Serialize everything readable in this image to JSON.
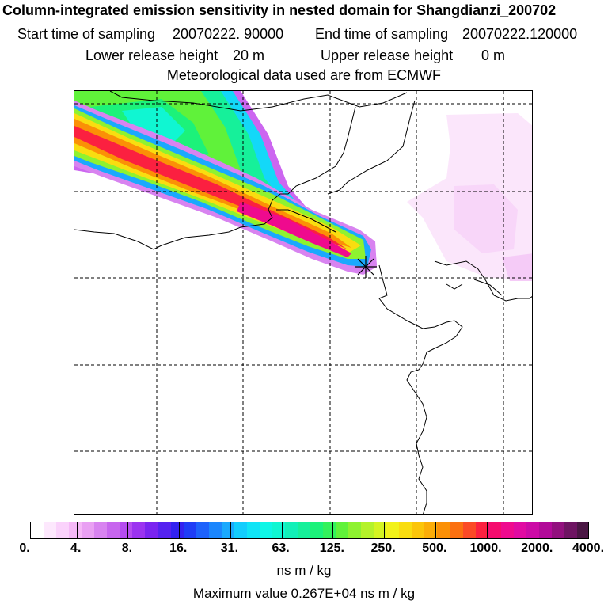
{
  "title": {
    "line1": "Column-integrated emission sensitivity in nested domain for Shangdianzi_200702",
    "start_label": "Start time of sampling",
    "start_value": "20070222. 90000",
    "end_label": "End time of sampling",
    "end_value": "20070222.120000",
    "lower_label": "Lower release height",
    "lower_value": "20 m",
    "upper_label": "Upper release height",
    "upper_value": "0 m",
    "line4": "Meteorological data used are from ECMWF"
  },
  "colorbar": {
    "ticks": [
      "0.",
      "4.",
      "8.",
      "16.",
      "31.",
      "63.",
      "125.",
      "250.",
      "500.",
      "1000.",
      "2000.",
      "4000."
    ],
    "colors": [
      "#ffffff",
      "#fde8fd",
      "#fad2fb",
      "#f5b8f7",
      "#e9a0f3",
      "#d883f0",
      "#c766ee",
      "#b54cf0",
      "#9b33f0",
      "#7a24f0",
      "#5522f0",
      "#3322f0",
      "#1f3df6",
      "#1d62fb",
      "#1b86fd",
      "#1aa9fd",
      "#13cdfd",
      "#10e4f6",
      "#0ff6e6",
      "#10f6d2",
      "#12f0b8",
      "#16f09a",
      "#1cf27a",
      "#33f25c",
      "#60f23a",
      "#8ef230",
      "#b4f22a",
      "#d4f422",
      "#f2f21a",
      "#f9dd10",
      "#fbc50a",
      "#fbad08",
      "#fb9006",
      "#fb7010",
      "#fb4a26",
      "#fb2040",
      "#f50c6e",
      "#ef0a8e",
      "#e10aa2",
      "#cc0aa6",
      "#b20a99",
      "#92107e",
      "#6e1462",
      "#4a1644"
    ],
    "unit": "ns m / kg"
  },
  "max_value_text": "Maximum value  0.267E+04 ns m / kg",
  "map": {
    "receptor_marker": "receptor-star-icon"
  }
}
